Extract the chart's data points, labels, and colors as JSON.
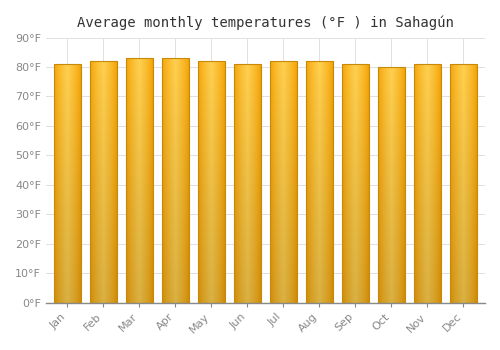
{
  "title": "Average monthly temperatures (°F ) in Sahagún",
  "months": [
    "Jan",
    "Feb",
    "Mar",
    "Apr",
    "May",
    "Jun",
    "Jul",
    "Aug",
    "Sep",
    "Oct",
    "Nov",
    "Dec"
  ],
  "values": [
    81,
    82,
    83,
    83,
    82,
    81,
    82,
    82,
    81,
    80,
    81,
    81
  ],
  "bar_color_center": "#FFD050",
  "bar_color_edge": "#F5A000",
  "bar_edge_color": "#C8880A",
  "background_color": "#ffffff",
  "plot_bg_color": "#ffffff",
  "ylim": [
    0,
    90
  ],
  "yticks": [
    0,
    10,
    20,
    30,
    40,
    50,
    60,
    70,
    80,
    90
  ],
  "ytick_labels": [
    "0°F",
    "10°F",
    "20°F",
    "30°F",
    "40°F",
    "50°F",
    "60°F",
    "70°F",
    "80°F",
    "90°F"
  ],
  "title_fontsize": 10,
  "tick_fontsize": 8,
  "grid_color": "#e0e0e0",
  "bar_width": 0.75
}
